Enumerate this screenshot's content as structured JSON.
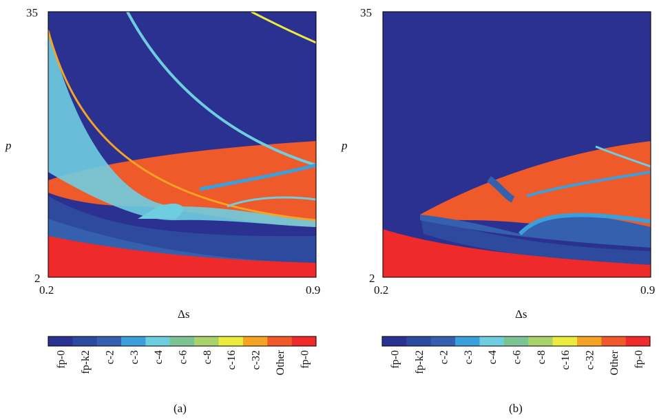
{
  "colors": {
    "fp0_blue": "#2b3190",
    "fpk2": "#2e4a9e",
    "c2": "#3560ad",
    "c3": "#3a9fdb",
    "c4": "#6fcde0",
    "c6": "#7cc496",
    "c8": "#a9d26a",
    "c16": "#ecec40",
    "c32": "#f5a323",
    "other": "#ee5a2a",
    "fp0_red": "#ee2a2a"
  },
  "chart_data": [
    {
      "type": "heatmap",
      "panel_label": "(a)",
      "xlabel": "Δs",
      "ylabel": "p",
      "xlim": [
        0.2,
        0.9
      ],
      "ylim": [
        2,
        35
      ],
      "x_ticks": [
        "0.2",
        "0.9"
      ],
      "y_ticks": [
        "35",
        "2"
      ],
      "legend_entries": [
        "fp-0",
        "fp-k2",
        "c-2",
        "c-3",
        "c-4",
        "c-6",
        "c-8",
        "c-16",
        "c-32",
        "Other",
        "fp-0"
      ]
    },
    {
      "type": "heatmap",
      "panel_label": "(b)",
      "xlabel": "Δs",
      "ylabel": "p",
      "xlim": [
        0.2,
        0.9
      ],
      "ylim": [
        2,
        35
      ],
      "x_ticks": [
        "0.2",
        "0.9"
      ],
      "y_ticks": [
        "35",
        "2"
      ],
      "legend_entries": [
        "fp-0",
        "fp-k2",
        "c-2",
        "c-3",
        "c-4",
        "c-6",
        "c-8",
        "c-16",
        "c-32",
        "Other",
        "fp-0"
      ]
    }
  ]
}
